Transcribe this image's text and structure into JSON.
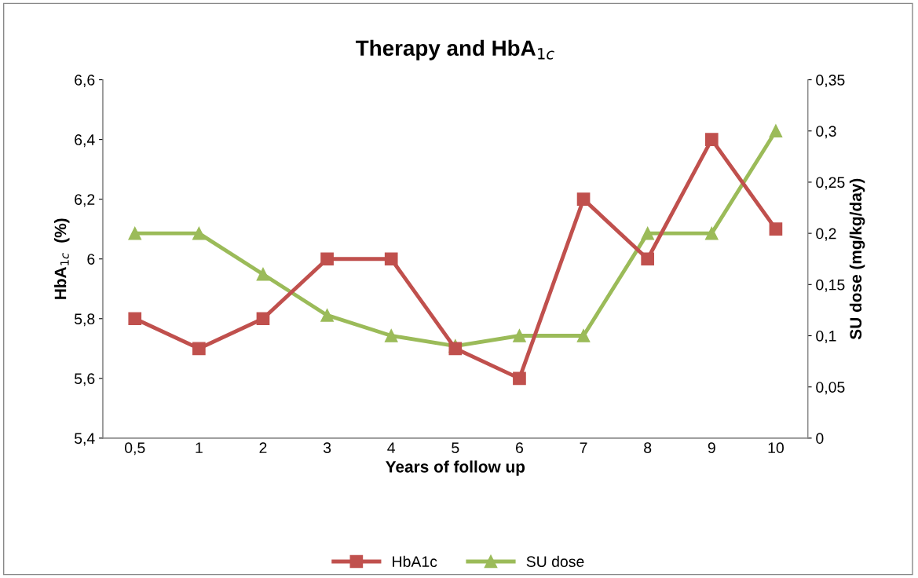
{
  "chart_data": {
    "type": "line",
    "title": "Therapy and HbA$_{1c}$",
    "xlabel": "Years of follow up",
    "ylabel": "HbA$_{1c}$  (%)",
    "y2label": "SU dose (mg/kg/day)",
    "categories": [
      "0,5",
      "1",
      "2",
      "3",
      "4",
      "5",
      "6",
      "7",
      "8",
      "9",
      "10"
    ],
    "series": [
      {
        "name": "HbA1c",
        "color": "#c0504d",
        "marker": "square",
        "values": [
          5.8,
          5.7,
          5.8,
          6.0,
          6.0,
          5.7,
          5.6,
          6.2,
          6.0,
          6.4,
          6.1
        ]
      },
      {
        "name": "SU dose",
        "color": "#9bbb59",
        "marker": "triangle",
        "axis": "y2",
        "values": [
          0.2,
          0.2,
          0.16,
          0.12,
          0.1,
          0.09,
          0.1,
          0.1,
          0.2,
          0.2,
          0.3
        ]
      }
    ],
    "ylim": [
      5.4,
      6.6
    ],
    "yticks": [
      {
        "value": 5.4,
        "label": "5,4"
      },
      {
        "value": 5.6,
        "label": "5,6"
      },
      {
        "value": 5.8,
        "label": "5,8"
      },
      {
        "value": 6,
        "label": "6"
      },
      {
        "value": 6.2,
        "label": "6,2"
      },
      {
        "value": 6.4,
        "label": "6,4"
      },
      {
        "value": 6.6,
        "label": "6,6"
      }
    ],
    "y2lim": [
      0,
      0.35
    ],
    "y2ticks": [
      0,
      {
        "value": 0.05,
        "label": "0,05"
      },
      {
        "value": 0.1,
        "label": "0,1"
      },
      {
        "value": 0.15,
        "label": "0,15"
      },
      {
        "value": 0.2,
        "label": "0,2"
      },
      {
        "value": 0.25,
        "label": "0,25"
      },
      {
        "value": 0.3,
        "label": "0,3"
      },
      {
        "value": 0.35,
        "label": "0,35"
      }
    ],
    "grid": false,
    "legend": "bottom",
    "line_style": "solid"
  }
}
